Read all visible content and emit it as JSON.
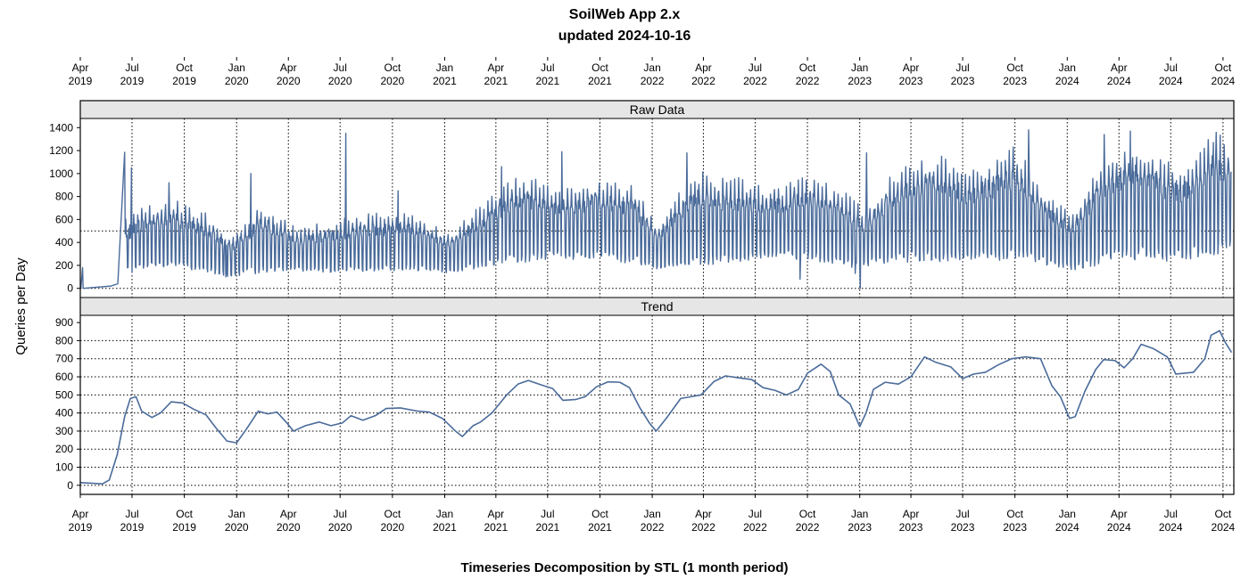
{
  "chart_data": {
    "type": "line",
    "title": "SoilWeb App 2.x",
    "subtitle": "updated 2024-10-16",
    "xlabel": "Timeseries Decomposition by STL (1 month period)",
    "ylabel": "Queries per Day",
    "x_range": [
      "2019-04-01",
      "2024-10-20"
    ],
    "x_ticks": [
      {
        "month": "Apr",
        "year": "2019",
        "date": "2019-04-01"
      },
      {
        "month": "Jul",
        "year": "2019",
        "date": "2019-07-01"
      },
      {
        "month": "Oct",
        "year": "2019",
        "date": "2019-10-01"
      },
      {
        "month": "Jan",
        "year": "2020",
        "date": "2020-01-01"
      },
      {
        "month": "Apr",
        "year": "2020",
        "date": "2020-04-01"
      },
      {
        "month": "Jul",
        "year": "2020",
        "date": "2020-07-01"
      },
      {
        "month": "Oct",
        "year": "2020",
        "date": "2020-10-01"
      },
      {
        "month": "Jan",
        "year": "2021",
        "date": "2021-01-01"
      },
      {
        "month": "Apr",
        "year": "2021",
        "date": "2021-04-01"
      },
      {
        "month": "Jul",
        "year": "2021",
        "date": "2021-07-01"
      },
      {
        "month": "Oct",
        "year": "2021",
        "date": "2021-10-01"
      },
      {
        "month": "Jan",
        "year": "2022",
        "date": "2022-01-01"
      },
      {
        "month": "Apr",
        "year": "2022",
        "date": "2022-04-01"
      },
      {
        "month": "Jul",
        "year": "2022",
        "date": "2022-07-01"
      },
      {
        "month": "Oct",
        "year": "2022",
        "date": "2022-10-01"
      },
      {
        "month": "Jan",
        "year": "2023",
        "date": "2023-01-01"
      },
      {
        "month": "Apr",
        "year": "2023",
        "date": "2023-04-01"
      },
      {
        "month": "Jul",
        "year": "2023",
        "date": "2023-07-01"
      },
      {
        "month": "Oct",
        "year": "2023",
        "date": "2023-10-01"
      },
      {
        "month": "Jan",
        "year": "2024",
        "date": "2024-01-01"
      },
      {
        "month": "Apr",
        "year": "2024",
        "date": "2024-04-01"
      },
      {
        "month": "Jul",
        "year": "2024",
        "date": "2024-07-01"
      },
      {
        "month": "Oct",
        "year": "2024",
        "date": "2024-10-01"
      }
    ],
    "grid": true,
    "line_color": "#4a6b9a",
    "panels": [
      {
        "name": "Raw Data",
        "ylim": [
          -80,
          1480
        ],
        "y_ticks": [
          0,
          200,
          400,
          600,
          800,
          1000,
          1200,
          1400
        ],
        "ref_lines": [
          0,
          500
        ],
        "series_kind": "weekly oscillation between low and high envelopes",
        "points": [
          {
            "date": "2019-04-02",
            "value": 0
          },
          {
            "date": "2019-04-05",
            "value": 180
          },
          {
            "date": "2019-04-06",
            "value": 0
          },
          {
            "date": "2019-05-25",
            "value": 20
          },
          {
            "date": "2019-06-06",
            "value": 40
          },
          {
            "date": "2019-06-18",
            "value": 1185
          },
          {
            "date": "2019-06-30",
            "value": 1050
          },
          {
            "date": "2019-07-11",
            "value": 640
          },
          {
            "date": "2019-09-04",
            "value": 920
          },
          {
            "date": "2019-12-13",
            "value": 100
          },
          {
            "date": "2020-01-26",
            "value": 1000
          },
          {
            "date": "2020-07-11",
            "value": 1350
          },
          {
            "date": "2020-10-11",
            "value": 850
          },
          {
            "date": "2021-04-11",
            "value": 1060
          },
          {
            "date": "2021-07-26",
            "value": 1190
          },
          {
            "date": "2022-03-03",
            "value": 1180
          },
          {
            "date": "2022-09-29",
            "value": 940
          },
          {
            "date": "2022-09-18",
            "value": 80
          },
          {
            "date": "2022-12-24",
            "value": 130
          },
          {
            "date": "2023-01-02",
            "value": 0
          },
          {
            "date": "2023-01-13",
            "value": 1180
          },
          {
            "date": "2023-10-25",
            "value": 1380
          },
          {
            "date": "2024-03-06",
            "value": 1340
          },
          {
            "date": "2024-04-21",
            "value": 1370
          },
          {
            "date": "2024-09-14",
            "value": 1270
          }
        ],
        "envelope": {
          "low": [
            [
              "2019-06-18",
              120
            ],
            [
              "2019-08-01",
              180
            ],
            [
              "2019-10-01",
              170
            ],
            [
              "2019-12-20",
              100
            ],
            [
              "2020-03-01",
              140
            ],
            [
              "2020-06-01",
              140
            ],
            [
              "2020-09-01",
              150
            ],
            [
              "2020-12-01",
              150
            ],
            [
              "2021-01-15",
              130
            ],
            [
              "2021-04-01",
              200
            ],
            [
              "2021-07-01",
              250
            ],
            [
              "2021-10-01",
              250
            ],
            [
              "2021-12-15",
              200
            ],
            [
              "2022-01-15",
              160
            ],
            [
              "2022-04-01",
              200
            ],
            [
              "2022-07-01",
              250
            ],
            [
              "2022-10-01",
              250
            ],
            [
              "2022-12-15",
              180
            ],
            [
              "2023-02-01",
              200
            ],
            [
              "2023-04-01",
              230
            ],
            [
              "2023-07-01",
              230
            ],
            [
              "2023-10-01",
              250
            ],
            [
              "2023-12-15",
              180
            ],
            [
              "2024-01-15",
              150
            ],
            [
              "2024-04-01",
              250
            ],
            [
              "2024-07-01",
              230
            ],
            [
              "2024-10-16",
              300
            ]
          ],
          "high": [
            [
              "2019-06-18",
              500
            ],
            [
              "2019-07-20",
              620
            ],
            [
              "2019-09-15",
              650
            ],
            [
              "2019-11-15",
              540
            ],
            [
              "2019-12-20",
              380
            ],
            [
              "2020-02-15",
              620
            ],
            [
              "2020-04-15",
              450
            ],
            [
              "2020-06-15",
              500
            ],
            [
              "2020-09-01",
              560
            ],
            [
              "2020-11-01",
              560
            ],
            [
              "2021-01-10",
              410
            ],
            [
              "2021-03-10",
              640
            ],
            [
              "2021-05-15",
              860
            ],
            [
              "2021-08-01",
              740
            ],
            [
              "2021-10-01",
              840
            ],
            [
              "2021-12-01",
              760
            ],
            [
              "2022-01-10",
              480
            ],
            [
              "2022-03-15",
              860
            ],
            [
              "2022-06-01",
              820
            ],
            [
              "2022-07-15",
              760
            ],
            [
              "2022-10-01",
              850
            ],
            [
              "2022-12-10",
              700
            ],
            [
              "2023-01-10",
              590
            ],
            [
              "2023-03-01",
              880
            ],
            [
              "2023-05-15",
              1000
            ],
            [
              "2023-07-15",
              880
            ],
            [
              "2023-10-01",
              1050
            ],
            [
              "2023-12-01",
              700
            ],
            [
              "2024-01-10",
              560
            ],
            [
              "2024-03-01",
              940
            ],
            [
              "2024-05-01",
              1100
            ],
            [
              "2024-07-15",
              900
            ],
            [
              "2024-09-15",
              1150
            ],
            [
              "2024-10-16",
              1100
            ]
          ]
        }
      },
      {
        "name": "Trend",
        "ylim": [
          -50,
          940
        ],
        "y_ticks": [
          0,
          100,
          200,
          300,
          400,
          500,
          600,
          700,
          800,
          900
        ],
        "ref_lines": [
          0,
          100,
          200,
          300,
          400,
          500,
          600,
          700,
          800
        ],
        "points": [
          {
            "date": "2019-04-01",
            "value": 15
          },
          {
            "date": "2019-04-20",
            "value": 12
          },
          {
            "date": "2019-05-10",
            "value": 8
          },
          {
            "date": "2019-05-22",
            "value": 30
          },
          {
            "date": "2019-06-05",
            "value": 170
          },
          {
            "date": "2019-06-18",
            "value": 380
          },
          {
            "date": "2019-06-28",
            "value": 480
          },
          {
            "date": "2019-07-08",
            "value": 490
          },
          {
            "date": "2019-07-18",
            "value": 410
          },
          {
            "date": "2019-08-05",
            "value": 375
          },
          {
            "date": "2019-08-20",
            "value": 400
          },
          {
            "date": "2019-09-08",
            "value": 462
          },
          {
            "date": "2019-09-28",
            "value": 455
          },
          {
            "date": "2019-10-18",
            "value": 420
          },
          {
            "date": "2019-11-08",
            "value": 390
          },
          {
            "date": "2019-11-25",
            "value": 320
          },
          {
            "date": "2019-12-15",
            "value": 245
          },
          {
            "date": "2020-01-01",
            "value": 235
          },
          {
            "date": "2020-01-18",
            "value": 310
          },
          {
            "date": "2020-02-08",
            "value": 410
          },
          {
            "date": "2020-02-25",
            "value": 395
          },
          {
            "date": "2020-03-12",
            "value": 405
          },
          {
            "date": "2020-03-28",
            "value": 350
          },
          {
            "date": "2020-04-10",
            "value": 300
          },
          {
            "date": "2020-05-01",
            "value": 330
          },
          {
            "date": "2020-05-25",
            "value": 350
          },
          {
            "date": "2020-06-15",
            "value": 330
          },
          {
            "date": "2020-07-05",
            "value": 345
          },
          {
            "date": "2020-07-20",
            "value": 385
          },
          {
            "date": "2020-08-10",
            "value": 360
          },
          {
            "date": "2020-09-01",
            "value": 385
          },
          {
            "date": "2020-09-20",
            "value": 425
          },
          {
            "date": "2020-10-15",
            "value": 428
          },
          {
            "date": "2020-11-15",
            "value": 410
          },
          {
            "date": "2020-12-05",
            "value": 405
          },
          {
            "date": "2020-12-28",
            "value": 370
          },
          {
            "date": "2021-01-20",
            "value": 300
          },
          {
            "date": "2021-02-01",
            "value": 270
          },
          {
            "date": "2021-02-20",
            "value": 330
          },
          {
            "date": "2021-03-05",
            "value": 350
          },
          {
            "date": "2021-03-25",
            "value": 400
          },
          {
            "date": "2021-04-20",
            "value": 500
          },
          {
            "date": "2021-05-10",
            "value": 560
          },
          {
            "date": "2021-05-28",
            "value": 580
          },
          {
            "date": "2021-06-20",
            "value": 555
          },
          {
            "date": "2021-07-10",
            "value": 535
          },
          {
            "date": "2021-07-28",
            "value": 470
          },
          {
            "date": "2021-08-20",
            "value": 475
          },
          {
            "date": "2021-09-05",
            "value": 490
          },
          {
            "date": "2021-09-25",
            "value": 545
          },
          {
            "date": "2021-10-15",
            "value": 572
          },
          {
            "date": "2021-11-05",
            "value": 570
          },
          {
            "date": "2021-11-22",
            "value": 540
          },
          {
            "date": "2021-12-10",
            "value": 430
          },
          {
            "date": "2021-12-28",
            "value": 340
          },
          {
            "date": "2022-01-08",
            "value": 300
          },
          {
            "date": "2022-01-28",
            "value": 380
          },
          {
            "date": "2022-02-20",
            "value": 480
          },
          {
            "date": "2022-03-10",
            "value": 490
          },
          {
            "date": "2022-03-28",
            "value": 500
          },
          {
            "date": "2022-04-20",
            "value": 575
          },
          {
            "date": "2022-05-10",
            "value": 605
          },
          {
            "date": "2022-06-01",
            "value": 595
          },
          {
            "date": "2022-06-25",
            "value": 585
          },
          {
            "date": "2022-07-15",
            "value": 540
          },
          {
            "date": "2022-08-05",
            "value": 525
          },
          {
            "date": "2022-08-25",
            "value": 500
          },
          {
            "date": "2022-09-15",
            "value": 530
          },
          {
            "date": "2022-10-01",
            "value": 620
          },
          {
            "date": "2022-10-25",
            "value": 670
          },
          {
            "date": "2022-11-10",
            "value": 630
          },
          {
            "date": "2022-11-25",
            "value": 500
          },
          {
            "date": "2022-12-15",
            "value": 450
          },
          {
            "date": "2023-01-01",
            "value": 325
          },
          {
            "date": "2023-01-12",
            "value": 400
          },
          {
            "date": "2023-01-25",
            "value": 530
          },
          {
            "date": "2023-02-15",
            "value": 570
          },
          {
            "date": "2023-03-10",
            "value": 560
          },
          {
            "date": "2023-04-01",
            "value": 600
          },
          {
            "date": "2023-04-25",
            "value": 710
          },
          {
            "date": "2023-05-15",
            "value": 680
          },
          {
            "date": "2023-06-10",
            "value": 655
          },
          {
            "date": "2023-07-01",
            "value": 590
          },
          {
            "date": "2023-07-20",
            "value": 615
          },
          {
            "date": "2023-08-10",
            "value": 625
          },
          {
            "date": "2023-09-01",
            "value": 665
          },
          {
            "date": "2023-09-25",
            "value": 700
          },
          {
            "date": "2023-10-20",
            "value": 710
          },
          {
            "date": "2023-11-15",
            "value": 700
          },
          {
            "date": "2023-12-05",
            "value": 550
          },
          {
            "date": "2023-12-20",
            "value": 490
          },
          {
            "date": "2024-01-05",
            "value": 370
          },
          {
            "date": "2024-01-15",
            "value": 380
          },
          {
            "date": "2024-02-01",
            "value": 520
          },
          {
            "date": "2024-02-20",
            "value": 640
          },
          {
            "date": "2024-03-05",
            "value": 695
          },
          {
            "date": "2024-03-25",
            "value": 690
          },
          {
            "date": "2024-04-10",
            "value": 650
          },
          {
            "date": "2024-04-25",
            "value": 700
          },
          {
            "date": "2024-05-10",
            "value": 780
          },
          {
            "date": "2024-06-01",
            "value": 755
          },
          {
            "date": "2024-06-25",
            "value": 710
          },
          {
            "date": "2024-07-10",
            "value": 615
          },
          {
            "date": "2024-08-10",
            "value": 625
          },
          {
            "date": "2024-08-30",
            "value": 700
          },
          {
            "date": "2024-09-10",
            "value": 830
          },
          {
            "date": "2024-09-25",
            "value": 855
          },
          {
            "date": "2024-10-05",
            "value": 790
          },
          {
            "date": "2024-10-16",
            "value": 735
          }
        ]
      }
    ]
  }
}
